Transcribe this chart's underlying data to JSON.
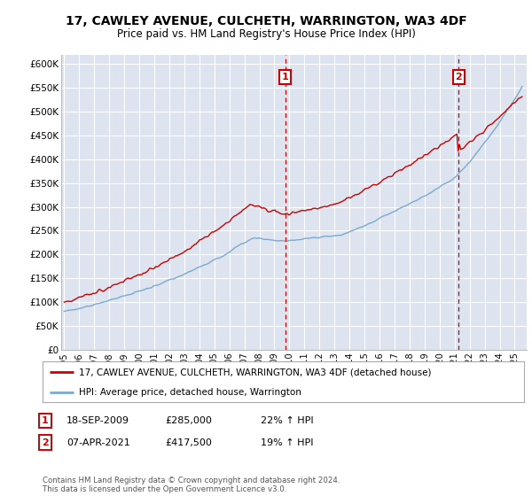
{
  "title": "17, CAWLEY AVENUE, CULCHETH, WARRINGTON, WA3 4DF",
  "subtitle": "Price paid vs. HM Land Registry's House Price Index (HPI)",
  "ylabel_ticks": [
    "£0",
    "£50K",
    "£100K",
    "£150K",
    "£200K",
    "£250K",
    "£300K",
    "£350K",
    "£400K",
    "£450K",
    "£500K",
    "£550K",
    "£600K"
  ],
  "ylim": [
    0,
    620000
  ],
  "ytick_vals": [
    0,
    50000,
    100000,
    150000,
    200000,
    250000,
    300000,
    350000,
    400000,
    450000,
    500000,
    550000,
    600000
  ],
  "xlim_start": 1994.8,
  "xlim_end": 2025.8,
  "background_color": "#dde4f0",
  "plot_bg": "#dde4f0",
  "grid_color": "#ffffff",
  "sale1_x": 2009.72,
  "sale1_y": 285000,
  "sale2_x": 2021.27,
  "sale2_y": 417500,
  "vline_color": "#cc0000",
  "legend_line1": "17, CAWLEY AVENUE, CULCHETH, WARRINGTON, WA3 4DF (detached house)",
  "legend_line2": "HPI: Average price, detached house, Warrington",
  "red_line_color": "#cc0000",
  "blue_line_color": "#7aaad0",
  "title_fontsize": 10,
  "subtitle_fontsize": 8.5,
  "xtick_years": [
    1995,
    1996,
    1997,
    1998,
    1999,
    2000,
    2001,
    2002,
    2003,
    2004,
    2005,
    2006,
    2007,
    2008,
    2009,
    2010,
    2011,
    2012,
    2013,
    2014,
    2015,
    2016,
    2017,
    2018,
    2019,
    2020,
    2021,
    2022,
    2023,
    2024,
    2025
  ],
  "footer": "Contains HM Land Registry data © Crown copyright and database right 2024.\nThis data is licensed under the Open Government Licence v3.0."
}
